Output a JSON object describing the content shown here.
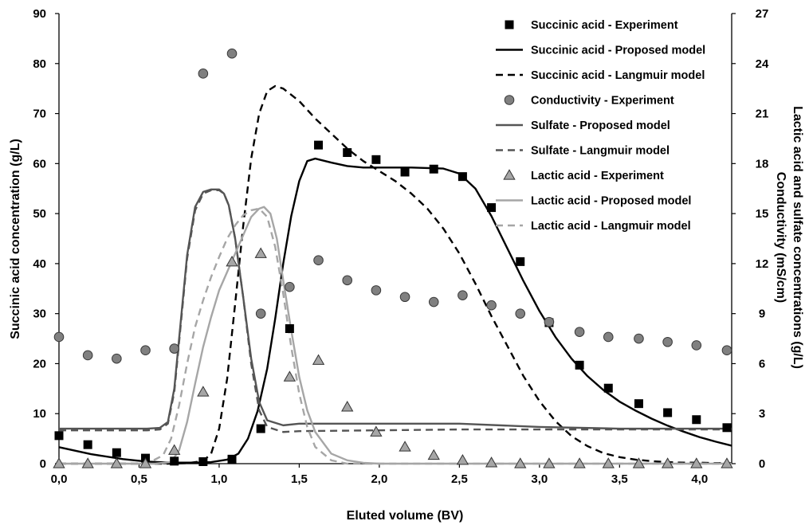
{
  "chart_data": {
    "type": "scatter",
    "title": "",
    "xlabel": "Eluted volume (BV)",
    "ylabel_left": "Succinic acid concentration (g/L)",
    "ylabel_right": [
      "Lactic acid and sulfate concentrations (g/L)",
      "Conductivity (mS/cm)"
    ],
    "xlim": [
      0,
      4.2
    ],
    "ylim_left": [
      0,
      90
    ],
    "ylim_right": [
      0,
      27
    ],
    "x_ticks": [
      "0,0",
      "0,5",
      "1,0",
      "1,5",
      "2,0",
      "2,5",
      "3,0",
      "3,5",
      "4,0"
    ],
    "x_tick_values": [
      0,
      0.5,
      1.0,
      1.5,
      2.0,
      2.5,
      3.0,
      3.5,
      4.0
    ],
    "y_left_ticks": [
      "0",
      "10",
      "20",
      "30",
      "40",
      "50",
      "60",
      "70",
      "80",
      "90"
    ],
    "y_left_tick_values": [
      0,
      10,
      20,
      30,
      40,
      50,
      60,
      70,
      80,
      90
    ],
    "y_right_ticks": [
      "0",
      "3",
      "6",
      "9",
      "12",
      "15",
      "18",
      "21",
      "24",
      "27"
    ],
    "y_right_tick_values": [
      0,
      3,
      6,
      9,
      12,
      15,
      18,
      21,
      24,
      27
    ],
    "grid": false,
    "legend_position": "top-right",
    "series": [
      {
        "name": "Succinic acid - Experiment",
        "kind": "markers",
        "marker": "square",
        "axis": "left",
        "color": "#000000",
        "x": [
          0.0,
          0.18,
          0.36,
          0.54,
          0.72,
          0.9,
          1.08,
          1.26,
          1.44,
          1.62,
          1.8,
          1.98,
          2.16,
          2.34,
          2.52,
          2.7,
          2.88,
          3.06,
          3.25,
          3.43,
          3.62,
          3.8,
          3.98,
          4.17
        ],
        "y": [
          5.6,
          3.8,
          2.2,
          1.1,
          0.5,
          0.4,
          0.9,
          7.0,
          27.0,
          63.7,
          62.2,
          60.8,
          58.3,
          58.9,
          57.4,
          51.2,
          40.4,
          28.2,
          19.7,
          15.1,
          12.0,
          10.2,
          8.8,
          7.2
        ]
      },
      {
        "name": "Succinic acid - Proposed model",
        "kind": "line",
        "dash": "solid",
        "axis": "left",
        "color": "#000000",
        "width": 2.4,
        "x": [
          0.0,
          0.2,
          0.4,
          0.55,
          0.7,
          0.85,
          0.95,
          1.05,
          1.12,
          1.18,
          1.24,
          1.3,
          1.35,
          1.4,
          1.45,
          1.5,
          1.55,
          1.6,
          1.7,
          1.8,
          1.9,
          2.0,
          2.1,
          2.2,
          2.3,
          2.4,
          2.5,
          2.6,
          2.7,
          2.8,
          2.9,
          3.0,
          3.1,
          3.2,
          3.3,
          3.4,
          3.5,
          3.6,
          3.7,
          3.8,
          3.9,
          4.0,
          4.1,
          4.2
        ],
        "y": [
          3.3,
          1.9,
          0.9,
          0.4,
          0.2,
          0.2,
          0.3,
          0.8,
          2.0,
          5.0,
          10.5,
          19.0,
          29.0,
          40.0,
          49.5,
          56.5,
          60.5,
          61.0,
          60.2,
          59.5,
          59.2,
          59.2,
          59.2,
          59.2,
          59.1,
          59.0,
          58.0,
          55.0,
          49.5,
          43.0,
          36.5,
          30.5,
          25.3,
          21.0,
          17.5,
          14.7,
          12.4,
          10.6,
          9.0,
          7.6,
          6.4,
          5.3,
          4.4,
          3.6
        ]
      },
      {
        "name": "Succinic acid - Langmuir model",
        "kind": "line",
        "dash": "dash",
        "axis": "left",
        "color": "#000000",
        "width": 2.4,
        "x": [
          0.0,
          0.5,
          0.7,
          0.8,
          0.9,
          0.95,
          1.0,
          1.05,
          1.1,
          1.15,
          1.2,
          1.25,
          1.3,
          1.35,
          1.4,
          1.5,
          1.6,
          1.7,
          1.8,
          1.9,
          2.0,
          2.1,
          2.2,
          2.3,
          2.4,
          2.5,
          2.6,
          2.7,
          2.8,
          2.9,
          3.0,
          3.1,
          3.2,
          3.3,
          3.4,
          3.5,
          3.6,
          3.7,
          3.8,
          3.9,
          4.0,
          4.1,
          4.2
        ],
        "y": [
          0.0,
          0.0,
          0.0,
          0.1,
          0.5,
          2.0,
          7.0,
          17.0,
          32.0,
          47.5,
          61.0,
          70.0,
          74.5,
          75.5,
          75.0,
          72.5,
          69.0,
          66.0,
          63.0,
          60.5,
          58.5,
          56.5,
          54.0,
          51.0,
          47.0,
          42.0,
          36.0,
          29.5,
          23.5,
          17.5,
          12.5,
          8.5,
          5.5,
          3.5,
          2.1,
          1.3,
          0.8,
          0.5,
          0.3,
          0.2,
          0.2,
          0.1,
          0.1
        ]
      },
      {
        "name": "Conductivity - Experiment",
        "kind": "markers",
        "marker": "circle",
        "axis": "right",
        "color": "#808080",
        "x": [
          0.0,
          0.18,
          0.36,
          0.54,
          0.72,
          0.9,
          1.08,
          1.26,
          1.44,
          1.62,
          1.8,
          1.98,
          2.16,
          2.34,
          2.52,
          2.7,
          2.88,
          3.06,
          3.25,
          3.43,
          3.62,
          3.8,
          3.98,
          4.17
        ],
        "y": [
          7.6,
          6.5,
          6.3,
          6.8,
          6.9,
          23.4,
          24.6,
          9.0,
          10.6,
          12.2,
          11.0,
          10.4,
          10.0,
          9.7,
          10.1,
          9.5,
          9.0,
          8.5,
          7.9,
          7.6,
          7.5,
          7.3,
          7.1,
          6.8
        ]
      },
      {
        "name": "Sulfate - Proposed model",
        "kind": "line",
        "dash": "solid",
        "axis": "right",
        "color": "#555555",
        "width": 2.4,
        "x": [
          0.0,
          0.3,
          0.55,
          0.63,
          0.68,
          0.72,
          0.76,
          0.8,
          0.85,
          0.9,
          0.95,
          1.0,
          1.03,
          1.06,
          1.1,
          1.15,
          1.2,
          1.25,
          1.3,
          1.4,
          1.5,
          2.0,
          2.5,
          3.0,
          3.5,
          4.0,
          4.2
        ],
        "y": [
          2.1,
          2.1,
          2.1,
          2.15,
          2.5,
          4.5,
          8.5,
          12.5,
          15.4,
          16.3,
          16.45,
          16.45,
          16.2,
          15.5,
          13.5,
          10.0,
          6.3,
          3.7,
          2.6,
          2.3,
          2.4,
          2.4,
          2.4,
          2.2,
          2.1,
          2.1,
          2.1
        ]
      },
      {
        "name": "Sulfate - Langmuir model",
        "kind": "line",
        "dash": "dash",
        "axis": "right",
        "color": "#555555",
        "width": 2.4,
        "x": [
          0.0,
          0.3,
          0.55,
          0.63,
          0.68,
          0.72,
          0.76,
          0.8,
          0.85,
          0.9,
          0.95,
          1.0,
          1.03,
          1.06,
          1.1,
          1.15,
          1.2,
          1.25,
          1.3,
          1.4,
          1.5,
          2.0,
          2.5,
          3.0,
          3.5,
          4.0,
          4.2
        ],
        "y": [
          2.0,
          2.0,
          2.0,
          2.05,
          2.4,
          4.3,
          8.3,
          12.3,
          15.2,
          16.2,
          16.4,
          16.4,
          16.2,
          15.5,
          13.5,
          10.0,
          6.0,
          3.2,
          2.2,
          1.9,
          1.95,
          2.0,
          2.05,
          2.05,
          2.05,
          2.05,
          2.05
        ]
      },
      {
        "name": "Lactic acid - Experiment",
        "kind": "markers",
        "marker": "triangle",
        "axis": "right",
        "color": "#a6a6a6",
        "x": [
          0.0,
          0.18,
          0.36,
          0.54,
          0.72,
          0.9,
          1.08,
          1.26,
          1.44,
          1.62,
          1.8,
          1.98,
          2.16,
          2.34,
          2.52,
          2.7,
          2.88,
          3.06,
          3.25,
          3.43,
          3.62,
          3.8,
          3.98,
          4.17
        ],
        "y": [
          0.0,
          0.0,
          0.0,
          0.0,
          0.8,
          4.3,
          12.1,
          12.6,
          5.2,
          6.2,
          3.4,
          1.9,
          1.0,
          0.5,
          0.2,
          0.05,
          0.0,
          0.0,
          0.0,
          0.0,
          0.0,
          0.0,
          0.0,
          0.0
        ]
      },
      {
        "name": "Lactic acid - Proposed model",
        "kind": "line",
        "dash": "solid",
        "axis": "right",
        "color": "#a6a6a6",
        "width": 2.4,
        "x": [
          0.0,
          0.6,
          0.7,
          0.75,
          0.8,
          0.85,
          0.9,
          0.95,
          1.0,
          1.05,
          1.1,
          1.15,
          1.2,
          1.25,
          1.28,
          1.32,
          1.36,
          1.4,
          1.45,
          1.5,
          1.55,
          1.6,
          1.7,
          1.8,
          1.9,
          2.0,
          2.2,
          4.2
        ],
        "y": [
          0.0,
          0.0,
          0.1,
          0.8,
          2.5,
          4.8,
          7.0,
          8.8,
          10.4,
          11.5,
          12.6,
          13.7,
          14.8,
          15.3,
          15.4,
          15.0,
          13.5,
          11.0,
          8.0,
          5.2,
          3.2,
          1.9,
          0.6,
          0.2,
          0.05,
          0.0,
          0.0,
          0.0
        ]
      },
      {
        "name": "Lactic acid - Langmuir model",
        "kind": "line",
        "dash": "dash",
        "axis": "right",
        "color": "#a6a6a6",
        "width": 2.4,
        "x": [
          0.0,
          0.55,
          0.65,
          0.7,
          0.75,
          0.8,
          0.85,
          0.9,
          0.95,
          1.0,
          1.05,
          1.1,
          1.15,
          1.2,
          1.25,
          1.3,
          1.35,
          1.4,
          1.45,
          1.5,
          1.55,
          1.6,
          1.7,
          1.8,
          2.0,
          4.2
        ],
        "y": [
          0.0,
          0.0,
          0.5,
          1.5,
          3.5,
          6.0,
          8.2,
          9.8,
          11.2,
          12.4,
          13.5,
          14.3,
          14.9,
          15.2,
          15.3,
          14.8,
          13.0,
          10.2,
          7.0,
          4.2,
          2.2,
          1.0,
          0.2,
          0.0,
          0.0,
          0.0
        ]
      }
    ]
  }
}
